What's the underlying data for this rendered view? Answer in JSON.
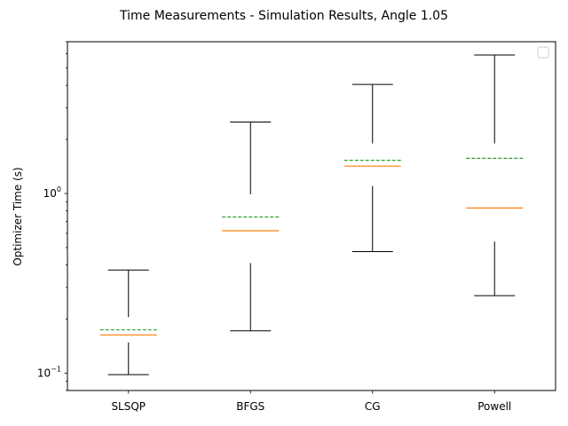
{
  "chart_data": {
    "type": "box",
    "title": "Time Measurements - Simulation Results, Angle 1.05",
    "ylabel": "Optimizer Time (s)",
    "xlabel": "",
    "yscale": "log",
    "ylim": [
      0.08,
      7.0
    ],
    "yticks": [
      {
        "value": 0.1,
        "base": "10",
        "exp": "−1"
      },
      {
        "value": 1.0,
        "base": "10",
        "exp": "0"
      }
    ],
    "grid": false,
    "legend": {
      "placement": "top-right",
      "entries": []
    },
    "categories": [
      "SLSQP",
      "BFGS",
      "CG",
      "Powell"
    ],
    "boxes": [
      {
        "whisker_low": 0.098,
        "q1": 0.148,
        "median": 0.163,
        "q3": 0.205,
        "whisker_high": 0.375,
        "mean": 0.174
      },
      {
        "whisker_low": 0.172,
        "q1": 0.41,
        "median": 0.62,
        "q3": 0.99,
        "whisker_high": 2.5,
        "mean": 0.74
      },
      {
        "whisker_low": 0.475,
        "q1": 1.1,
        "median": 1.42,
        "q3": 1.9,
        "whisker_high": 4.05,
        "mean": 1.53
      },
      {
        "whisker_low": 0.27,
        "q1": 0.54,
        "median": 0.83,
        "q3": 1.9,
        "whisker_high": 5.9,
        "mean": 1.57
      }
    ],
    "colors": {
      "median": "#ff7f0e",
      "mean": "#2ca02c",
      "whisker": "#000000"
    }
  }
}
